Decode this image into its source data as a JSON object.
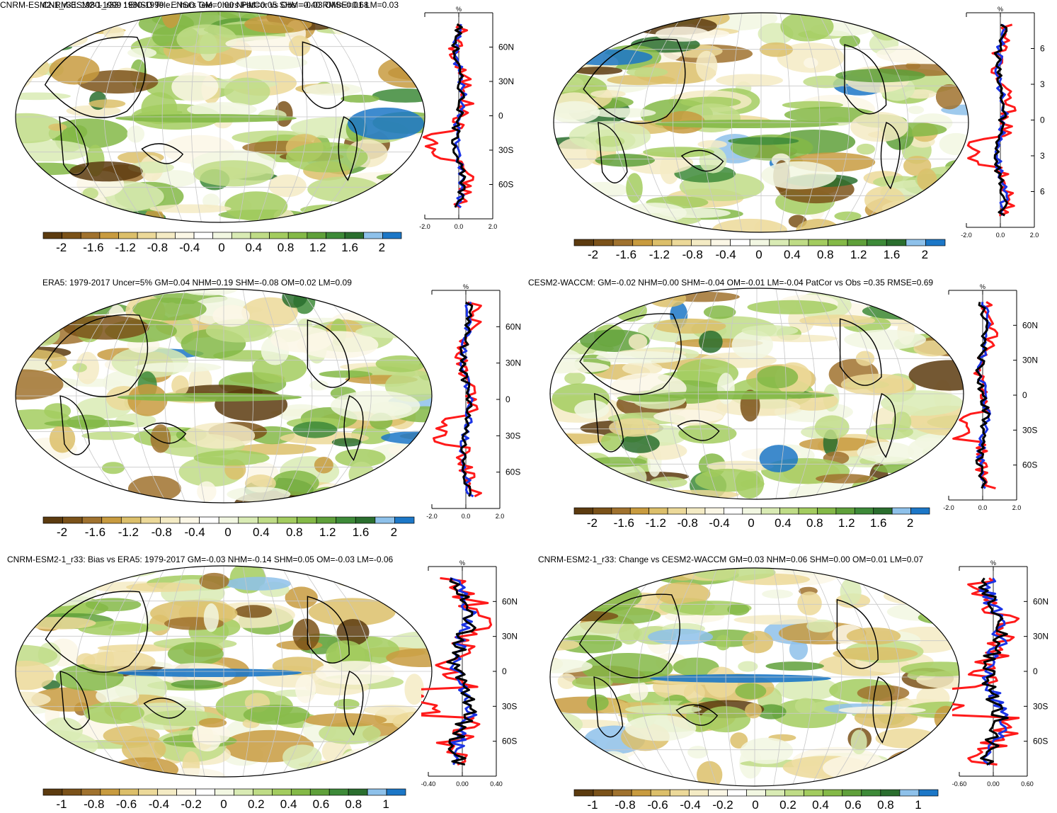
{
  "panels": [
    {
      "id": "p1",
      "title": "CNRM-ESM2-1_r33: 1980-1999 : ENSO Tele. : hurs GM=0.00 NHM=0.05 SHM=-0.03 OM=-0.01 LM=0.03",
      "cbar_ticks": [
        "-2",
        "-1.6",
        "-1.2",
        "-0.8",
        "-0.4",
        "0",
        "0.4",
        "0.8",
        "1.2",
        "1.6",
        "2"
      ],
      "profile_xticks": [
        "-2.0",
        "0.0",
        "2.0"
      ],
      "profile_unit": "%",
      "lat_ticks": [
        "60N",
        "30N",
        "0",
        "30S",
        "60S"
      ]
    },
    {
      "id": "p2",
      "title": "CNRM-ESM2-1_r33: 1980-1999 : ENSO Tele. : hurs PatCor vs Obs =0.40 RMSE=0.68",
      "cbar_ticks": [
        "-2",
        "-1.6",
        "-1.2",
        "-0.8",
        "-0.4",
        "0",
        "0.4",
        "0.8",
        "1.2",
        "1.6",
        "2"
      ],
      "profile_xticks": [
        "-2.0",
        "0.0",
        "2.0"
      ],
      "profile_unit": "%",
      "lat_ticks": [
        "6",
        "3",
        "0",
        "3",
        "6"
      ]
    },
    {
      "id": "p3",
      "title": "ERA5: 1979-2017 Uncer=5% GM=0.04 NHM=0.19 SHM=-0.08 OM=0.02 LM=0.09",
      "cbar_ticks": [
        "-2",
        "-1.6",
        "-1.2",
        "-0.8",
        "-0.4",
        "0",
        "0.4",
        "0.8",
        "1.2",
        "1.6",
        "2"
      ],
      "profile_xticks": [
        "-2.0",
        "0.0",
        "2.0"
      ],
      "profile_unit": "%",
      "lat_ticks": [
        "60N",
        "30N",
        "0",
        "30S",
        "60S"
      ]
    },
    {
      "id": "p4",
      "title": "CESM2-WACCM: GM=-0.02 NHM=0.00 SHM=-0.04 OM=-0.01 LM=-0.04 PatCor vs Obs =0.35 RMSE=0.69",
      "cbar_ticks": [
        "-2",
        "-1.6",
        "-1.2",
        "-0.8",
        "-0.4",
        "0",
        "0.4",
        "0.8",
        "1.2",
        "1.6",
        "2"
      ],
      "profile_xticks": [
        "-2.0",
        "0.0",
        "2.0"
      ],
      "profile_unit": "%",
      "lat_ticks": [
        "60N",
        "30N",
        "0",
        "30S",
        "60S"
      ]
    },
    {
      "id": "p5",
      "title": "CNRM-ESM2-1_r33: Bias vs ERA5: 1979-2017 GM=-0.03 NHM=-0.14 SHM=0.05 OM=-0.03 LM=-0.06",
      "cbar_ticks": [
        "-1",
        "-0.8",
        "-0.6",
        "-0.4",
        "-0.2",
        "0",
        "0.2",
        "0.4",
        "0.6",
        "0.8",
        "1"
      ],
      "profile_xticks": [
        "-0.40",
        "0.00",
        "0.40"
      ],
      "profile_unit": "%",
      "lat_ticks": [
        "60N",
        "30N",
        "0",
        "30S",
        "60S"
      ]
    },
    {
      "id": "p6",
      "title": "CNRM-ESM2-1_r33: Change vs CESM2-WACCM GM=0.03 NHM=0.06 SHM=0.00 OM=0.01 LM=0.07",
      "cbar_ticks": [
        "-1",
        "-0.8",
        "-0.6",
        "-0.4",
        "-0.2",
        "0",
        "0.2",
        "0.4",
        "0.6",
        "0.8",
        "1"
      ],
      "profile_xticks": [
        "-0.60",
        "0.00",
        "0.60"
      ],
      "profile_unit": "%",
      "lat_ticks": [
        "60N",
        "30N",
        "0",
        "30S",
        "60S"
      ]
    }
  ],
  "colors": {
    "palette": [
      "#5c3b0f",
      "#7b5219",
      "#a0722e",
      "#c89b3f",
      "#dcbf6a",
      "#ecd999",
      "#f4ebc4",
      "#fbf7e6",
      "#ffffff",
      "#f2f7e2",
      "#d9ebb4",
      "#bfdc86",
      "#a3cc5f",
      "#84b947",
      "#5fa03a",
      "#3d8a38",
      "#2a6e2e",
      "#8ec1ea",
      "#1c77c7"
    ],
    "profile_red": "#ff1a1a",
    "profile_blue": "#1a33e6",
    "profile_black": "#000000"
  }
}
